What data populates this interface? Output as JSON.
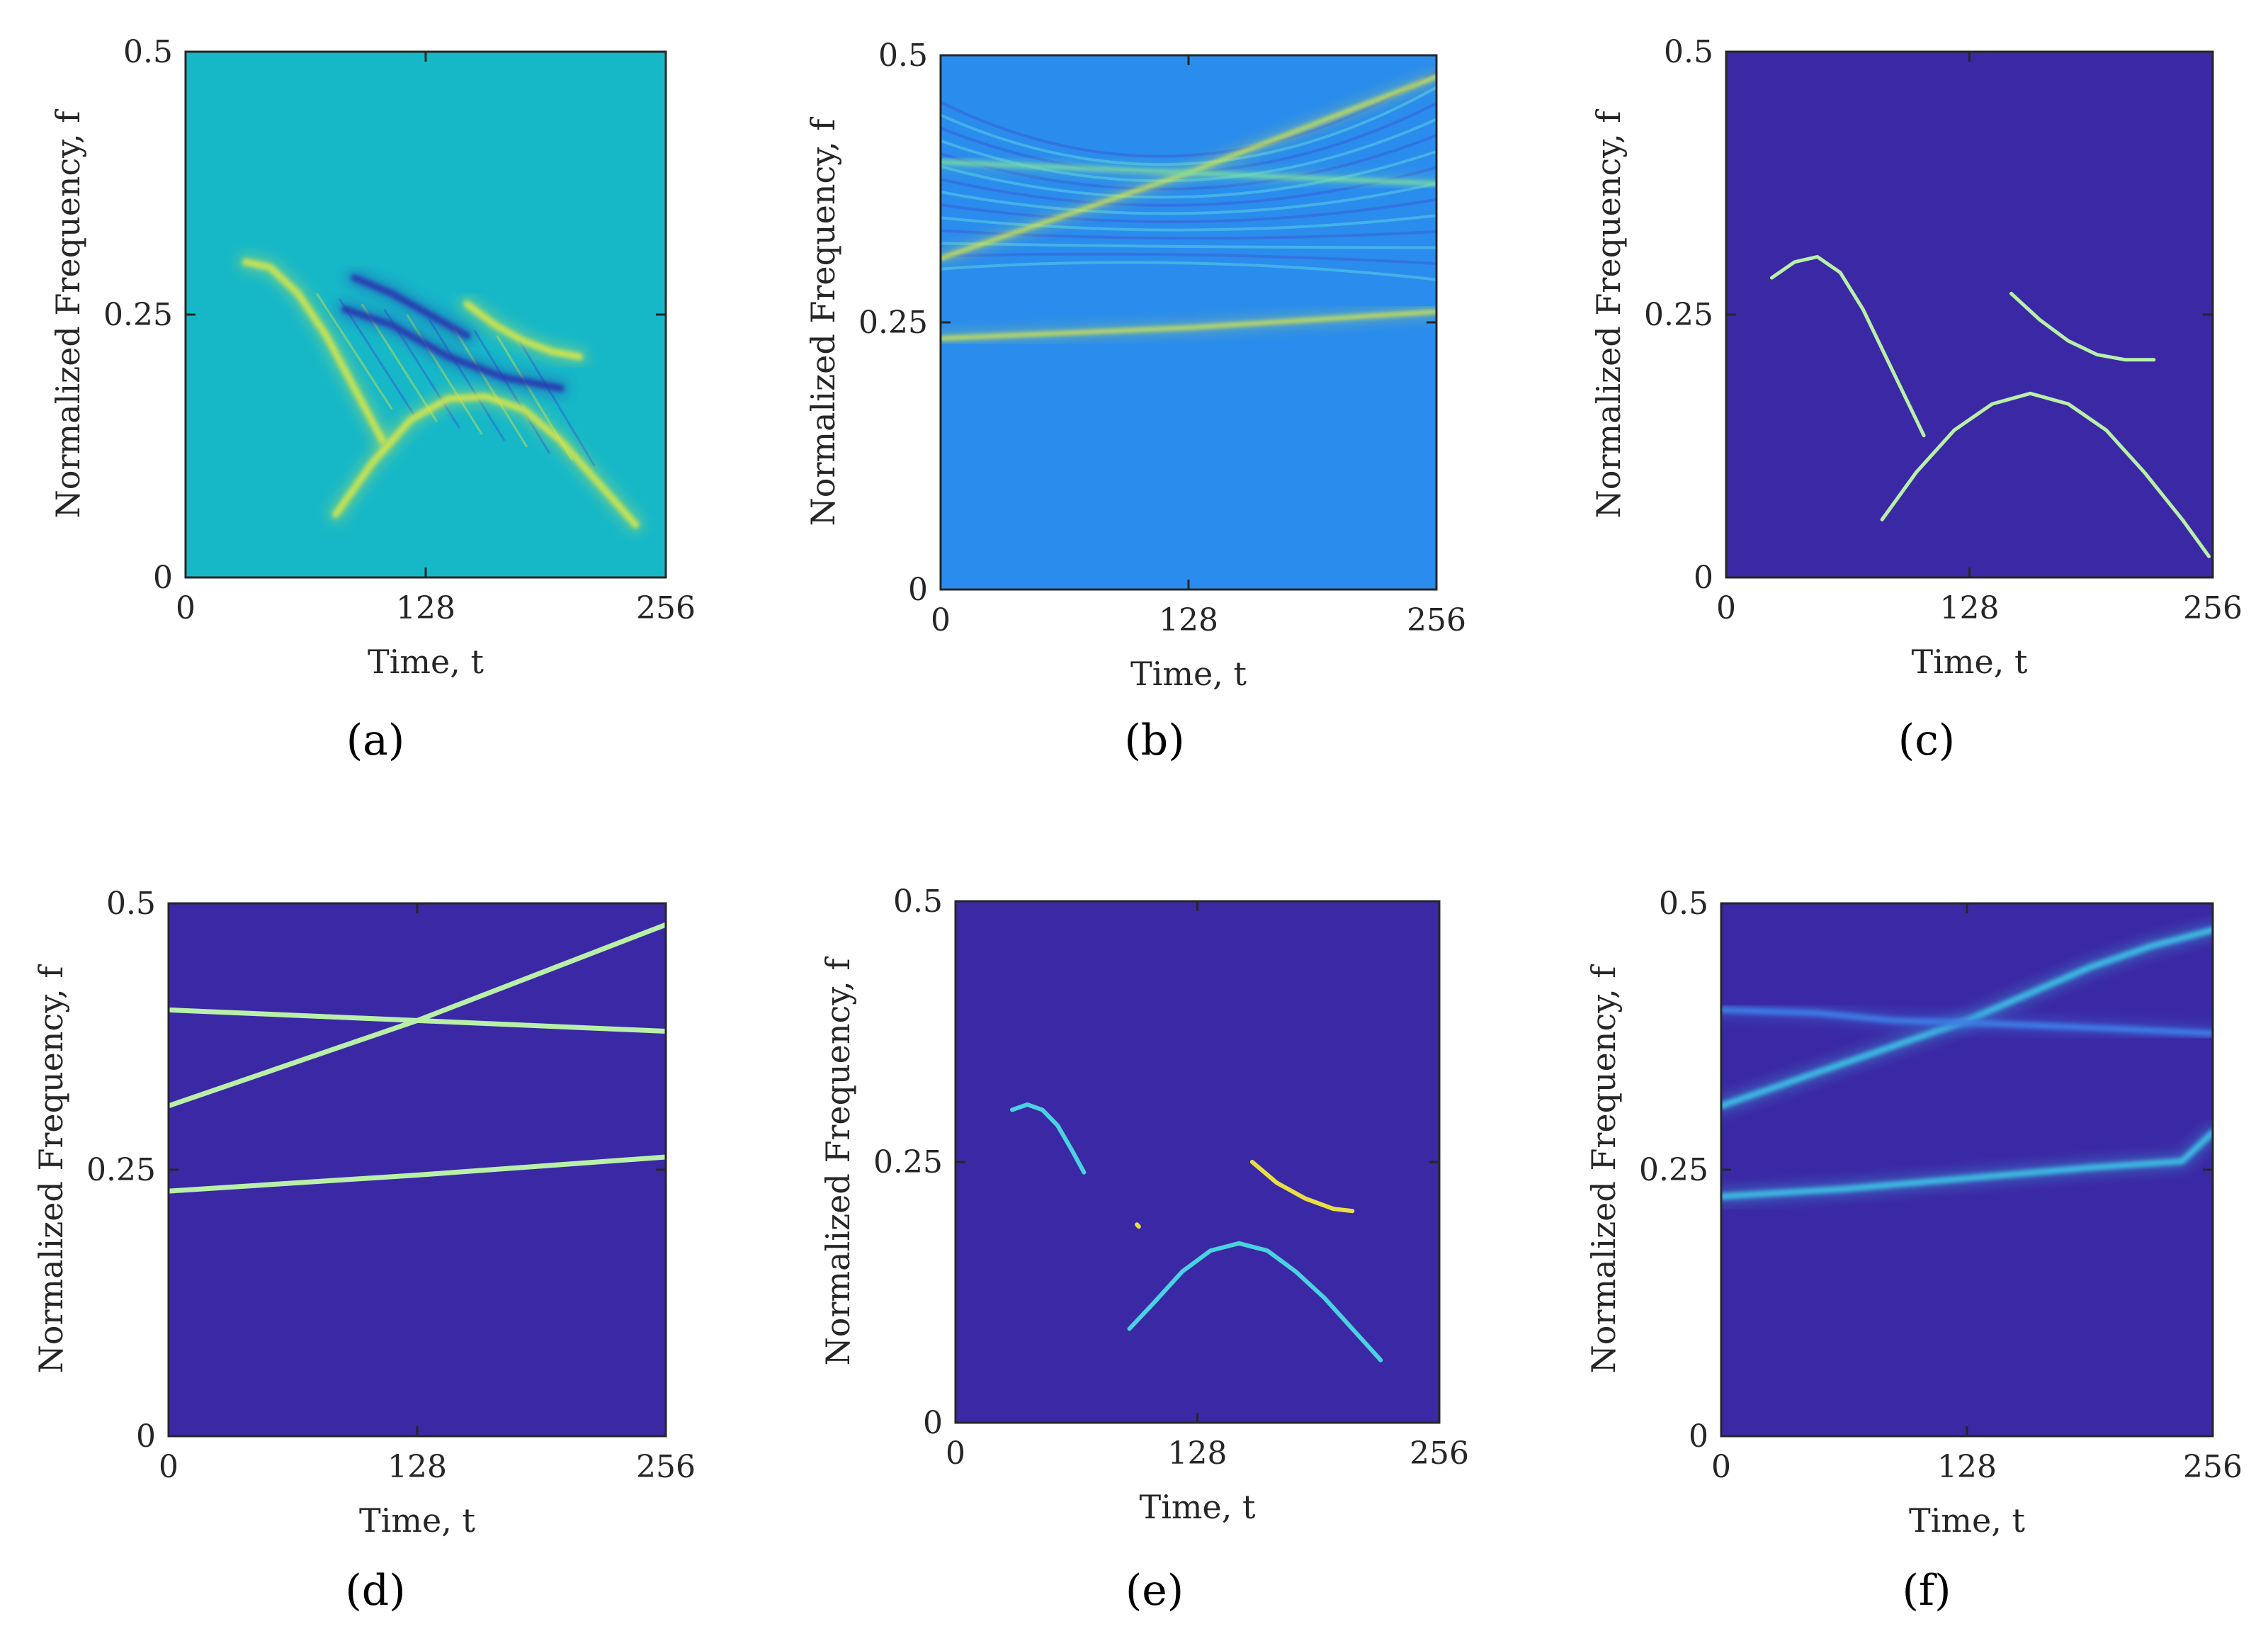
{
  "chart_data": [
    {
      "panel": "a",
      "type": "heatmap",
      "background": "#16b8c8",
      "xlabel": "Time, t",
      "ylabel": "Normalized Frequency, f",
      "xlim": [
        0,
        256
      ],
      "ylim": [
        0,
        0.5
      ],
      "xticks": [
        "0",
        "128",
        "256"
      ],
      "yticks": [
        "0",
        "0.25",
        "0.5"
      ],
      "components": [
        {
          "name": "chirp-1",
          "points": [
            [
              32,
              0.3
            ],
            [
              45,
              0.295
            ],
            [
              60,
              0.27
            ],
            [
              75,
              0.23
            ],
            [
              90,
              0.18
            ],
            [
              105,
              0.13
            ]
          ],
          "color": "#d8e64a"
        },
        {
          "name": "chirp-2",
          "points": [
            [
              80,
              0.06
            ],
            [
              100,
              0.11
            ],
            [
              120,
              0.15
            ],
            [
              140,
              0.17
            ],
            [
              160,
              0.172
            ],
            [
              180,
              0.16
            ],
            [
              200,
              0.13
            ],
            [
              220,
              0.09
            ],
            [
              240,
              0.05
            ]
          ],
          "color": "#d8e64a"
        },
        {
          "name": "chirp-3",
          "points": [
            [
              150,
              0.26
            ],
            [
              165,
              0.24
            ],
            [
              180,
              0.225
            ],
            [
              195,
              0.215
            ],
            [
              210,
              0.21
            ]
          ],
          "color": "#d8e64a"
        },
        {
          "name": "cross-term-1",
          "points": [
            [
              85,
              0.255
            ],
            [
              110,
              0.24
            ],
            [
              140,
              0.21
            ],
            [
              170,
              0.19
            ],
            [
              200,
              0.18
            ]
          ],
          "color": "#2a35b0"
        },
        {
          "name": "cross-term-2",
          "points": [
            [
              90,
              0.285
            ],
            [
              110,
              0.27
            ],
            [
              130,
              0.25
            ],
            [
              150,
              0.23
            ]
          ],
          "color": "#2a35b0"
        }
      ]
    },
    {
      "panel": "b",
      "type": "heatmap",
      "background": "#2a8cec",
      "xlabel": "Time, t",
      "ylabel": "Normalized Frequency, f",
      "xlim": [
        0,
        256
      ],
      "ylim": [
        0,
        0.5
      ],
      "xticks": [
        "0",
        "128",
        "256"
      ],
      "yticks": [
        "0",
        "0.25",
        "0.5"
      ],
      "components": [
        {
          "name": "chirp-rising",
          "points": [
            [
              0,
              0.31
            ],
            [
              64,
              0.35
            ],
            [
              128,
              0.39
            ],
            [
              192,
              0.435
            ],
            [
              256,
              0.48
            ]
          ],
          "color": "#d8e64a"
        },
        {
          "name": "tone-upper",
          "points": [
            [
              0,
              0.4
            ],
            [
              128,
              0.39
            ],
            [
              256,
              0.38
            ]
          ],
          "color": "#7fe0a0"
        },
        {
          "name": "tone-lower",
          "points": [
            [
              0,
              0.235
            ],
            [
              128,
              0.245
            ],
            [
              256,
              0.26
            ]
          ],
          "color": "#d8e64a"
        }
      ]
    },
    {
      "panel": "c",
      "type": "heatmap",
      "background": "#3b28a4",
      "xlabel": "Time, t",
      "ylabel": "Normalized Frequency, f",
      "xlim": [
        0,
        256
      ],
      "ylim": [
        0,
        0.5
      ],
      "xticks": [
        "0",
        "128",
        "256"
      ],
      "yticks": [
        "0",
        "0.25",
        "0.5"
      ],
      "components": [
        {
          "name": "chirp-1",
          "points": [
            [
              24,
              0.285
            ],
            [
              36,
              0.3
            ],
            [
              48,
              0.305
            ],
            [
              60,
              0.29
            ],
            [
              72,
              0.255
            ],
            [
              84,
              0.21
            ],
            [
              96,
              0.165
            ],
            [
              104,
              0.135
            ]
          ],
          "color": "#b8f0a8"
        },
        {
          "name": "chirp-2",
          "points": [
            [
              82,
              0.055
            ],
            [
              100,
              0.1
            ],
            [
              120,
              0.14
            ],
            [
              140,
              0.165
            ],
            [
              160,
              0.175
            ],
            [
              180,
              0.165
            ],
            [
              200,
              0.14
            ],
            [
              220,
              0.1
            ],
            [
              240,
              0.055
            ],
            [
              254,
              0.02
            ]
          ],
          "color": "#b8f0a8"
        },
        {
          "name": "chirp-3",
          "points": [
            [
              150,
              0.27
            ],
            [
              165,
              0.245
            ],
            [
              180,
              0.225
            ],
            [
              195,
              0.212
            ],
            [
              210,
              0.207
            ],
            [
              225,
              0.207
            ]
          ],
          "color": "#b8f0a8"
        }
      ]
    },
    {
      "panel": "d",
      "type": "heatmap",
      "background": "#3b28a4",
      "xlabel": "Time, t",
      "ylabel": "Normalized Frequency, f",
      "xlim": [
        0,
        256
      ],
      "ylim": [
        0,
        0.5
      ],
      "xticks": [
        "0",
        "128",
        "256"
      ],
      "yticks": [
        "0",
        "0.25",
        "0.5"
      ],
      "components": [
        {
          "name": "chirp-rising",
          "points": [
            [
              0,
              0.31
            ],
            [
              64,
              0.35
            ],
            [
              128,
              0.39
            ],
            [
              192,
              0.435
            ],
            [
              256,
              0.48
            ]
          ],
          "color": "#b8f0a8"
        },
        {
          "name": "tone-upper",
          "points": [
            [
              0,
              0.4
            ],
            [
              128,
              0.39
            ],
            [
              256,
              0.38
            ]
          ],
          "color": "#b8f0a8"
        },
        {
          "name": "tone-lower",
          "points": [
            [
              0,
              0.23
            ],
            [
              128,
              0.245
            ],
            [
              256,
              0.262
            ]
          ],
          "color": "#b8f0a8"
        }
      ]
    },
    {
      "panel": "e",
      "type": "heatmap",
      "background": "#3b28a4",
      "xlabel": "Time, t",
      "ylabel": "Normalized Frequency, f",
      "xlim": [
        0,
        256
      ],
      "ylim": [
        0,
        0.5
      ],
      "xticks": [
        "0",
        "128",
        "256"
      ],
      "yticks": [
        "0",
        "0.25",
        "0.5"
      ],
      "components": [
        {
          "name": "chirp-1",
          "points": [
            [
              30,
              0.3
            ],
            [
              38,
              0.305
            ],
            [
              46,
              0.3
            ],
            [
              54,
              0.285
            ],
            [
              62,
              0.26
            ],
            [
              68,
              0.24
            ]
          ],
          "color": "#4ad2e0"
        },
        {
          "name": "chirp-2",
          "points": [
            [
              92,
              0.09
            ],
            [
              105,
              0.115
            ],
            [
              120,
              0.145
            ],
            [
              135,
              0.165
            ],
            [
              150,
              0.172
            ],
            [
              165,
              0.165
            ],
            [
              180,
              0.145
            ],
            [
              195,
              0.12
            ],
            [
              210,
              0.09
            ],
            [
              225,
              0.06
            ]
          ],
          "color": "#4ad2e0"
        },
        {
          "name": "chirp-3",
          "points": [
            [
              157,
              0.25
            ],
            [
              170,
              0.23
            ],
            [
              185,
              0.215
            ],
            [
              200,
              0.205
            ],
            [
              210,
              0.203
            ]
          ],
          "color": "#e8e040"
        },
        {
          "name": "artifact",
          "points": [
            [
              96,
              0.19
            ],
            [
              97,
              0.188
            ]
          ],
          "color": "#e8e040"
        }
      ]
    },
    {
      "panel": "f",
      "type": "heatmap",
      "background": "#3b28a4",
      "xlabel": "Time, t",
      "ylabel": "Normalized Frequency, f",
      "xlim": [
        0,
        256
      ],
      "ylim": [
        0,
        0.5
      ],
      "xticks": [
        "0",
        "128",
        "256"
      ],
      "yticks": [
        "0",
        "0.25",
        "0.5"
      ],
      "components": [
        {
          "name": "chirp-rising",
          "points": [
            [
              0,
              0.31
            ],
            [
              32,
              0.33
            ],
            [
              64,
              0.35
            ],
            [
              96,
              0.37
            ],
            [
              128,
              0.39
            ],
            [
              160,
              0.415
            ],
            [
              192,
              0.44
            ],
            [
              224,
              0.46
            ],
            [
              256,
              0.475
            ]
          ],
          "color": "#3ec0e4"
        },
        {
          "name": "tone-upper",
          "points": [
            [
              0,
              0.4
            ],
            [
              50,
              0.397
            ],
            [
              90,
              0.39
            ],
            [
              128,
              0.388
            ],
            [
              170,
              0.385
            ],
            [
              210,
              0.382
            ],
            [
              256,
              0.378
            ]
          ],
          "color": "#3e7ee4"
        },
        {
          "name": "tone-lower",
          "points": [
            [
              0,
              0.225
            ],
            [
              64,
              0.232
            ],
            [
              128,
              0.242
            ],
            [
              192,
              0.252
            ],
            [
              240,
              0.258
            ],
            [
              256,
              0.285
            ]
          ],
          "color": "#3ec0e4"
        }
      ]
    }
  ],
  "panel_labels": [
    "(a)",
    "(b)",
    "(c)",
    "(d)",
    "(e)",
    "(f)"
  ],
  "panel_letters": [
    "a",
    "b",
    "c",
    "d",
    "e",
    "f"
  ]
}
